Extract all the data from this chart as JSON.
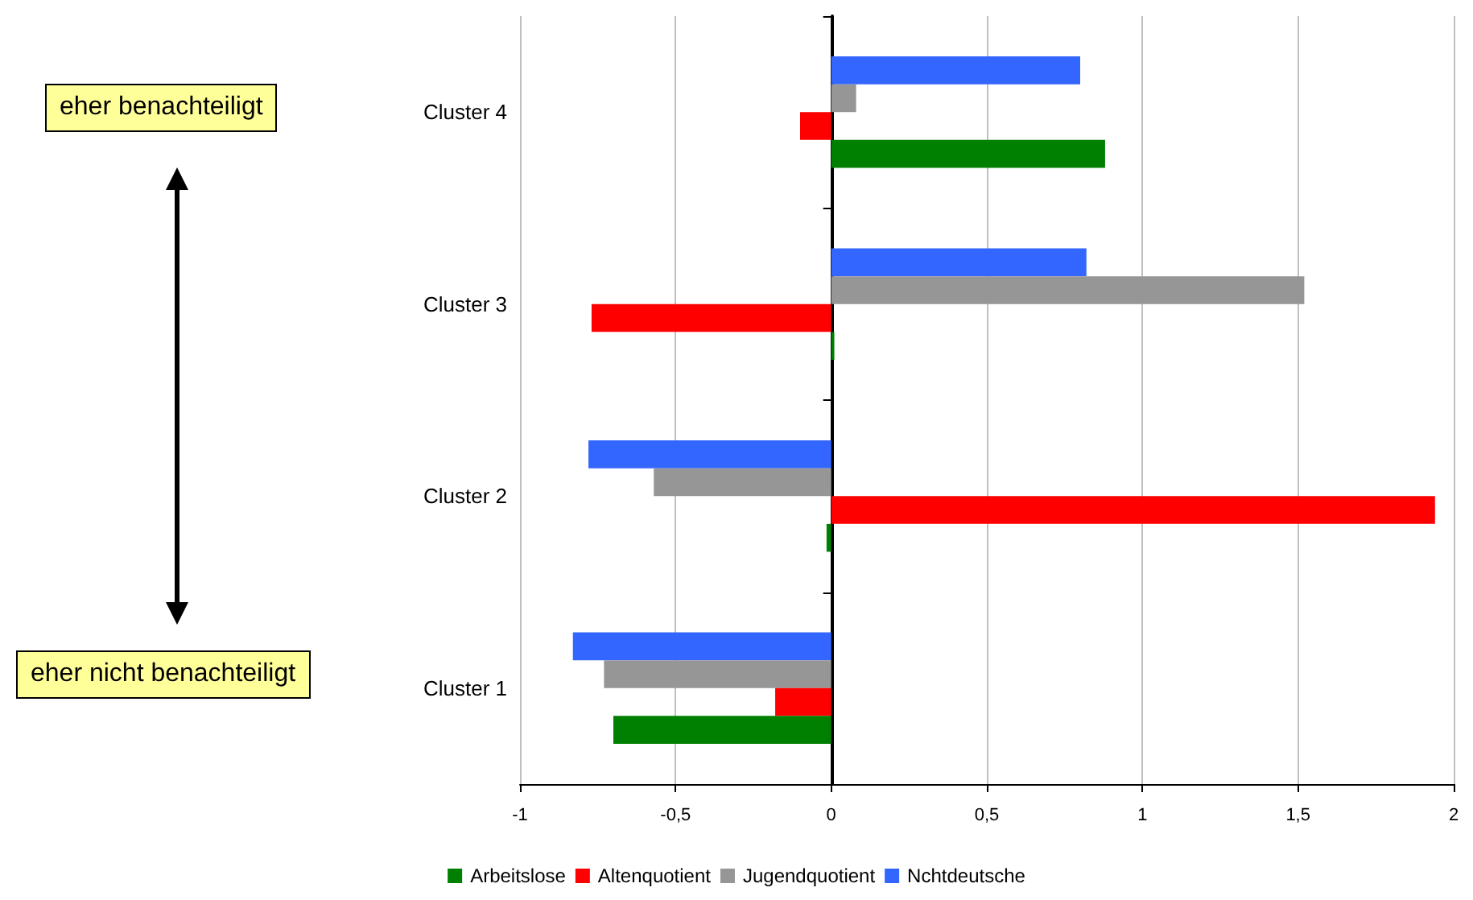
{
  "chart_data": {
    "type": "bar",
    "orientation": "horizontal",
    "categories": [
      "Cluster 4",
      "Cluster 3",
      "Cluster 2",
      "Cluster 1"
    ],
    "series": [
      {
        "name": "Arbeitslose",
        "color": "#008000",
        "values": [
          0.88,
          0.01,
          -0.015,
          -0.7
        ]
      },
      {
        "name": "Altenquotient",
        "color": "#ff0000",
        "values": [
          -0.1,
          -0.77,
          1.94,
          -0.18
        ]
      },
      {
        "name": "Jugendquotient",
        "color": "#969696",
        "values": [
          0.08,
          1.52,
          -0.57,
          -0.73
        ]
      },
      {
        "name": "Nchtdeutsche",
        "color": "#3366ff",
        "values": [
          0.8,
          0.82,
          -0.78,
          -0.83
        ]
      }
    ],
    "xlim": [
      -1,
      2
    ],
    "xticks": [
      -1,
      {
        "value": -0.5,
        "label": "-0,5"
      },
      0,
      {
        "value": 0.5,
        "label": "0,5"
      },
      1,
      {
        "value": 1.5,
        "label": "1,5"
      },
      2
    ],
    "grid": "x",
    "legend": "bottom",
    "annotations": [
      "eher benachteiligt",
      "eher nicht benachteiligt"
    ]
  }
}
